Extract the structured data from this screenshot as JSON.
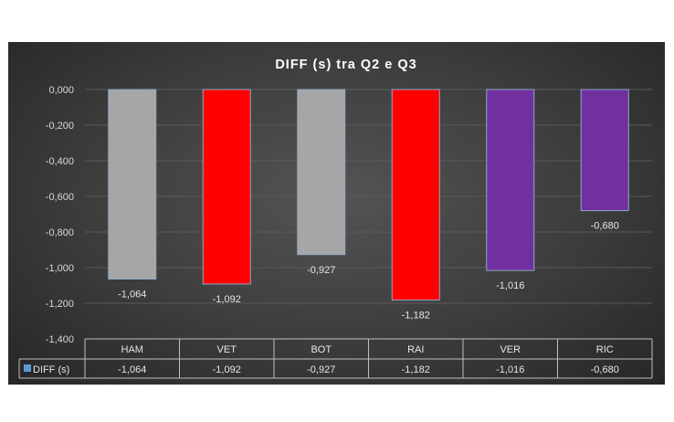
{
  "chart_data": {
    "type": "bar",
    "title": "DIFF (s) tra Q2 e Q3",
    "categories": [
      "HAM",
      "VET",
      "BOT",
      "RAI",
      "VER",
      "RIC"
    ],
    "series": [
      {
        "name": "DIFF (s)",
        "values": [
          -1.064,
          -1.092,
          -0.927,
          -1.182,
          -1.016,
          -0.68
        ],
        "labels": [
          "-1,064",
          "-1,092",
          "-0,927",
          "-1,182",
          "-1,016",
          "-0,680"
        ],
        "colors": [
          "#a6a6a6",
          "#ff0000",
          "#a6a6a6",
          "#ff0000",
          "#7030a0",
          "#7030a0"
        ]
      }
    ],
    "ylim": [
      -1.4,
      0
    ],
    "yticks": [
      0,
      -0.2,
      -0.4,
      -0.6,
      -0.8,
      -1.0,
      -1.2,
      -1.4
    ],
    "ytick_labels": [
      "0,000",
      "-0,200",
      "-0,400",
      "-0,600",
      "-0,800",
      "-1,000",
      "-1,200",
      "-1,400"
    ],
    "grid": true,
    "data_table": true,
    "legend_key_color": "#5b9bd5"
  },
  "colors": {
    "background": "#404040",
    "gridline": "#5a5a5a",
    "table_border": "#bfbfbf"
  }
}
